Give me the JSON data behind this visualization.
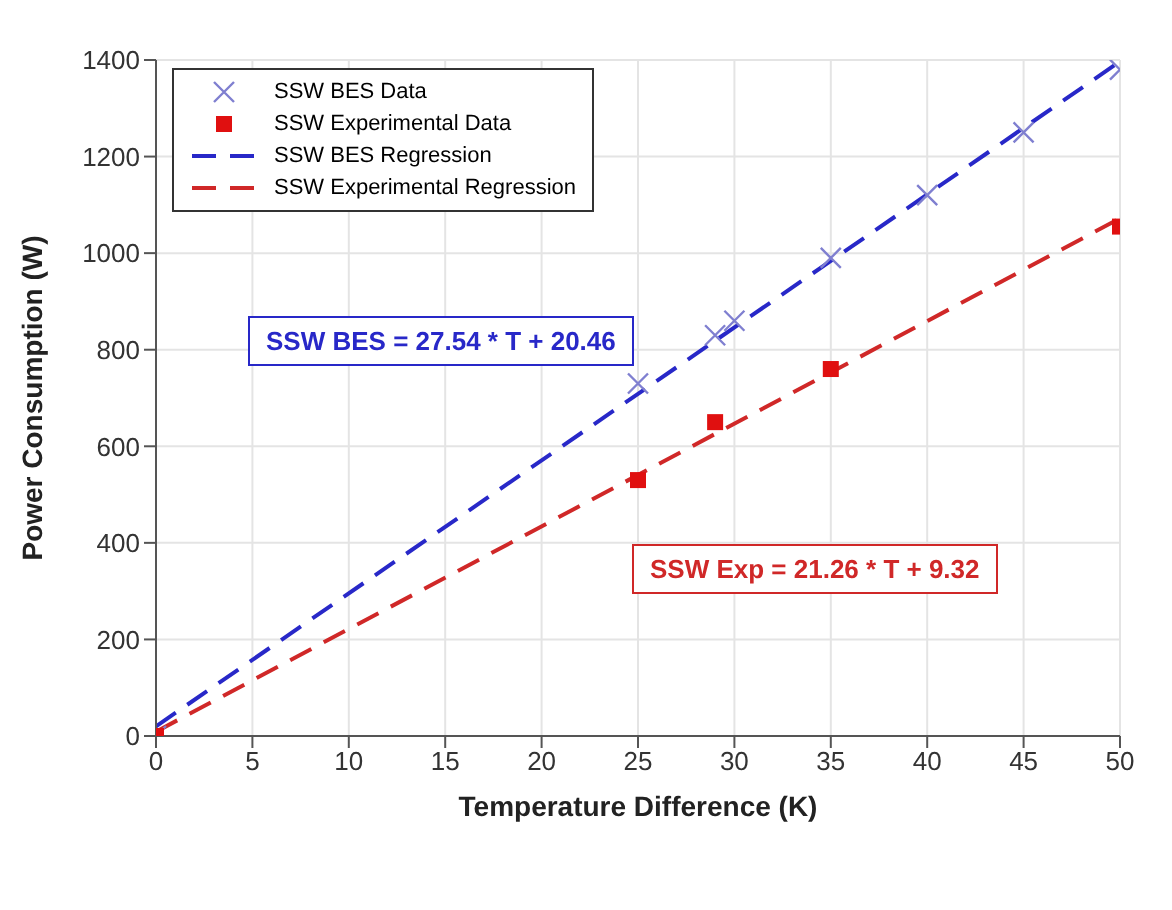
{
  "chart_data": {
    "type": "scatter",
    "xlabel": "Temperature Difference (K)",
    "ylabel": "Power Consumption (W)",
    "xlim": [
      0,
      50
    ],
    "xticks": [
      0,
      5,
      10,
      15,
      20,
      25,
      30,
      35,
      40,
      45,
      50
    ],
    "ylim": [
      0,
      1400
    ],
    "yticks": [
      0,
      200,
      400,
      600,
      800,
      1000,
      1200,
      1400
    ],
    "grid": true,
    "legend": "top left",
    "series": [
      {
        "name": "SSW BES Data",
        "marker": "cross",
        "color": "#7f7fd0",
        "x": [
          0,
          25,
          29,
          30,
          35,
          40,
          45,
          50
        ],
        "values": [
          0,
          730,
          830,
          860,
          990,
          1120,
          1250,
          1380
        ]
      },
      {
        "name": "SSW Experimental Data",
        "marker": "square",
        "color": "#e01010",
        "x": [
          0,
          25,
          29,
          35,
          50
        ],
        "values": [
          0,
          530,
          650,
          760,
          1055
        ]
      },
      {
        "name": "SSW BES Regression",
        "type": "line",
        "line_style": "dashed",
        "color": "#2828c8",
        "x": [
          0,
          50
        ],
        "values": [
          20,
          1397
        ]
      },
      {
        "name": "SSW Experimental Regression",
        "type": "line",
        "line_style": "dashed",
        "color": "#d02828",
        "x": [
          0,
          50
        ],
        "values": [
          9,
          1072
        ]
      }
    ],
    "annotations": [
      "SSW BES = 27.54 * T + 20.46",
      "SSW Exp = 21.26 * T + 9.32"
    ]
  }
}
